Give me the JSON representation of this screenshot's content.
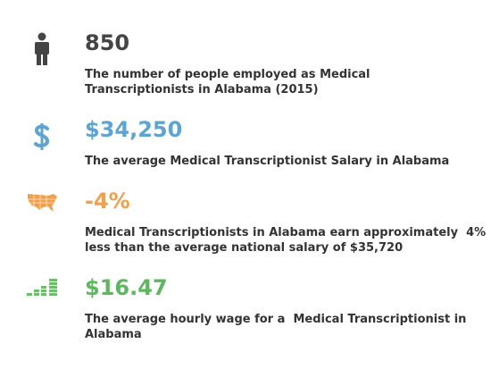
{
  "items": [
    {
      "value": "850",
      "description": [
        "The number of people employed as Medical",
        "Transcriptionists in Alabama (2015)"
      ]
    },
    {
      "value": "$34,250",
      "description": [
        "The average Medical Transcriptionist Salary in Alabama"
      ]
    },
    {
      "value": "-4%",
      "description": [
        "Medical Transcriptionists in Alabama earn approximately  4%",
        "less than the average national salary of $35,720"
      ]
    },
    {
      "value": "$16.47",
      "description": [
        "The average hourly wage for a  Medical Transcriptionist in",
        "Alabama"
      ]
    }
  ]
}
